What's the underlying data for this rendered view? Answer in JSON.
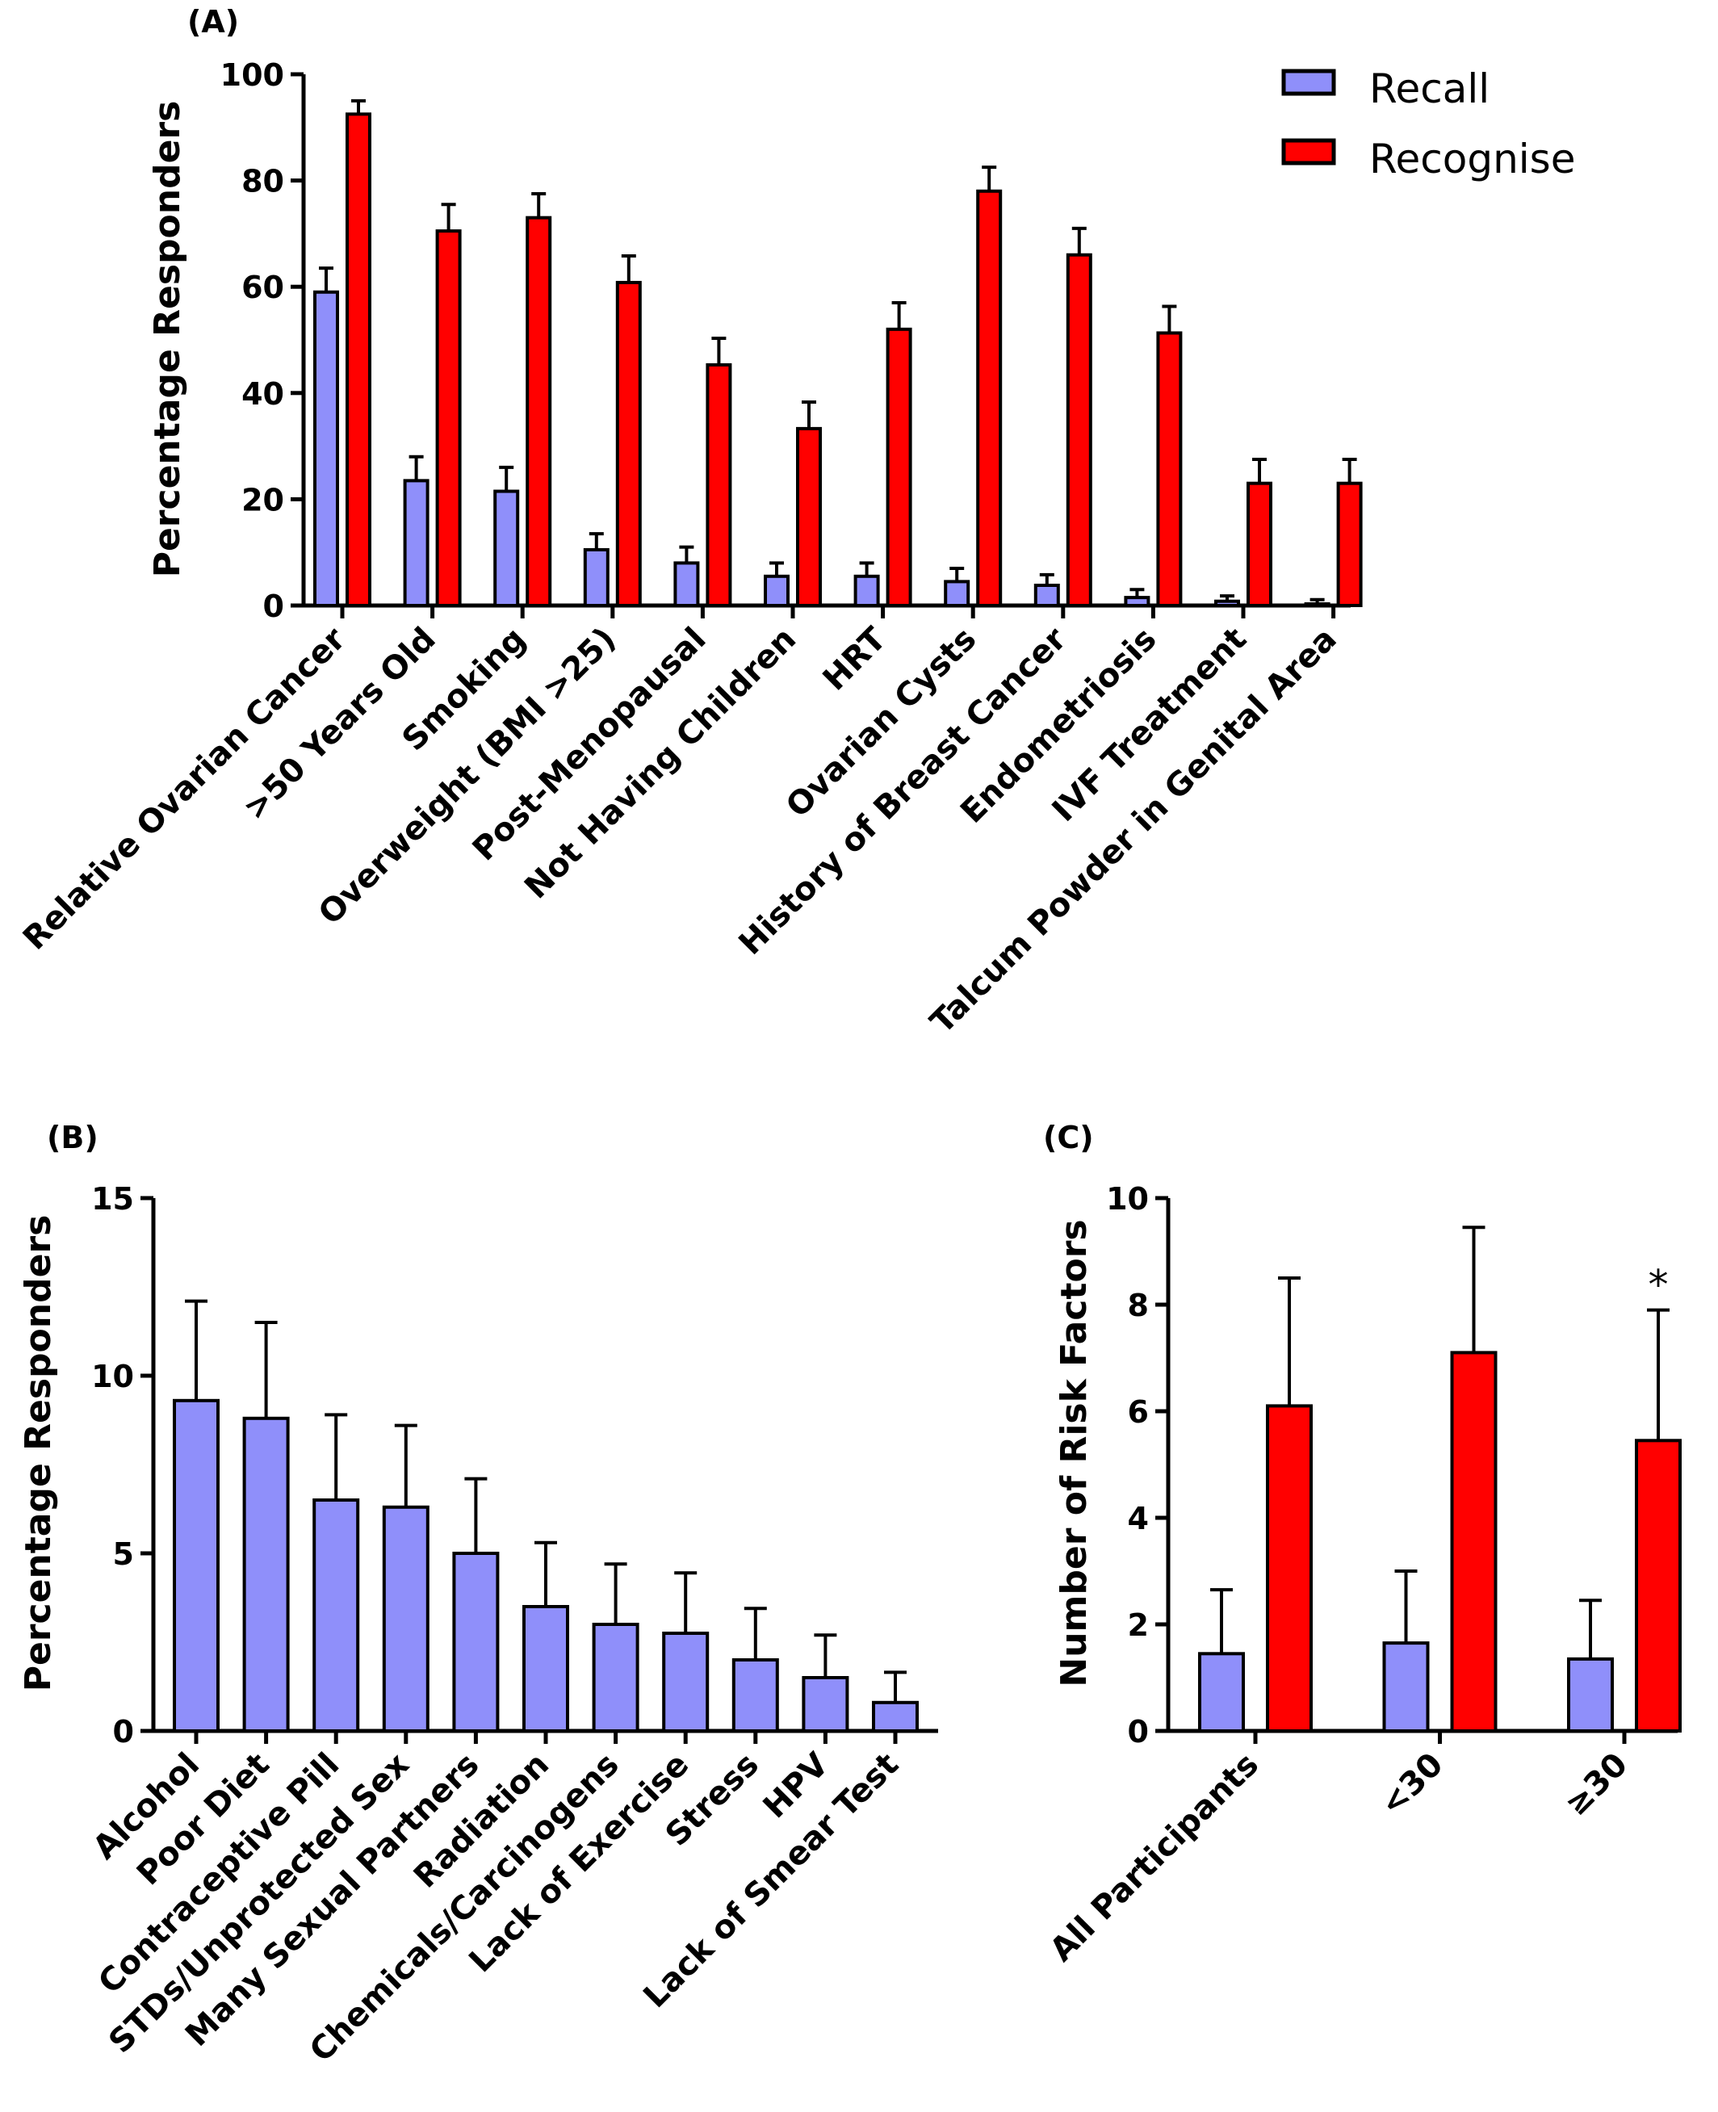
{
  "colors": {
    "recall": "#8f8ffa",
    "recognise": "#ff0000",
    "stroke": "#000000"
  },
  "legend": {
    "recall": "Recall",
    "recognise": "Recognise"
  },
  "chart_data": [
    {
      "panel": "(A)",
      "type": "bar",
      "ylabel": "Percentage Responders",
      "ylim": [
        0,
        100
      ],
      "yticks": [
        "0",
        "20",
        "40",
        "60",
        "80",
        "100"
      ],
      "categories": [
        "Relative Ovarian Cancer",
        ">50 Years Old",
        "Smoking",
        "Overweight (BMI >25)",
        "Post-Menopausal",
        "Not Having Children",
        "HRT",
        "Ovarian Cysts",
        "History of Breast Cancer",
        "Endometriosis",
        "IVF Treatment",
        "Talcum Powder in Genital Area"
      ],
      "series": [
        {
          "name": "Recall",
          "values": [
            59,
            23.5,
            21.5,
            10.5,
            8,
            5.5,
            5.5,
            4.5,
            3.8,
            1.5,
            0.8,
            0.3
          ],
          "errors": [
            4.5,
            4.5,
            4.5,
            3,
            3,
            2.5,
            2.5,
            2.5,
            2,
            1.5,
            1,
            0.8
          ]
        },
        {
          "name": "Recognise",
          "values": [
            92.5,
            70.5,
            73,
            60.8,
            45.3,
            33.3,
            52,
            78,
            66,
            51.3,
            23,
            23
          ],
          "errors": [
            2.5,
            5,
            4.5,
            5,
            5,
            5,
            5,
            4.5,
            5,
            5,
            4.5,
            4.5
          ]
        }
      ]
    },
    {
      "panel": "(B)",
      "type": "bar",
      "ylabel": "Percentage Responders",
      "ylim": [
        0,
        15
      ],
      "yticks": [
        "0",
        "5",
        "10",
        "15"
      ],
      "categories": [
        "Alcohol",
        "Poor Diet",
        "Contraceptive Pill",
        "STDs/Unprotected Sex",
        "Many Sexual Partners",
        "Radiation",
        "Chemicals/Carcinogens",
        "Lack of Exercise",
        "Stress",
        "HPV",
        "Lack of Smear Test"
      ],
      "series": [
        {
          "name": "Recall",
          "values": [
            9.3,
            8.8,
            6.5,
            6.3,
            5,
            3.5,
            3,
            2.75,
            2,
            1.5,
            0.8
          ],
          "errors": [
            2.8,
            2.7,
            2.4,
            2.3,
            2.1,
            1.8,
            1.7,
            1.7,
            1.45,
            1.2,
            0.85
          ]
        }
      ]
    },
    {
      "panel": "(C)",
      "type": "bar",
      "ylabel": "Number of Risk Factors",
      "ylim": [
        0,
        10
      ],
      "yticks": [
        "0",
        "2",
        "4",
        "6",
        "8",
        "10"
      ],
      "categories": [
        "All Participants",
        "<30",
        "≥30"
      ],
      "series": [
        {
          "name": "Recall",
          "values": [
            1.45,
            1.65,
            1.35
          ],
          "errors": [
            1.2,
            1.35,
            1.1
          ]
        },
        {
          "name": "Recognise",
          "values": [
            6.1,
            7.1,
            5.45
          ],
          "errors": [
            2.4,
            2.35,
            2.45
          ]
        }
      ],
      "annotations": [
        {
          "category": "≥30",
          "series": "Recognise",
          "text": "*"
        }
      ]
    }
  ]
}
